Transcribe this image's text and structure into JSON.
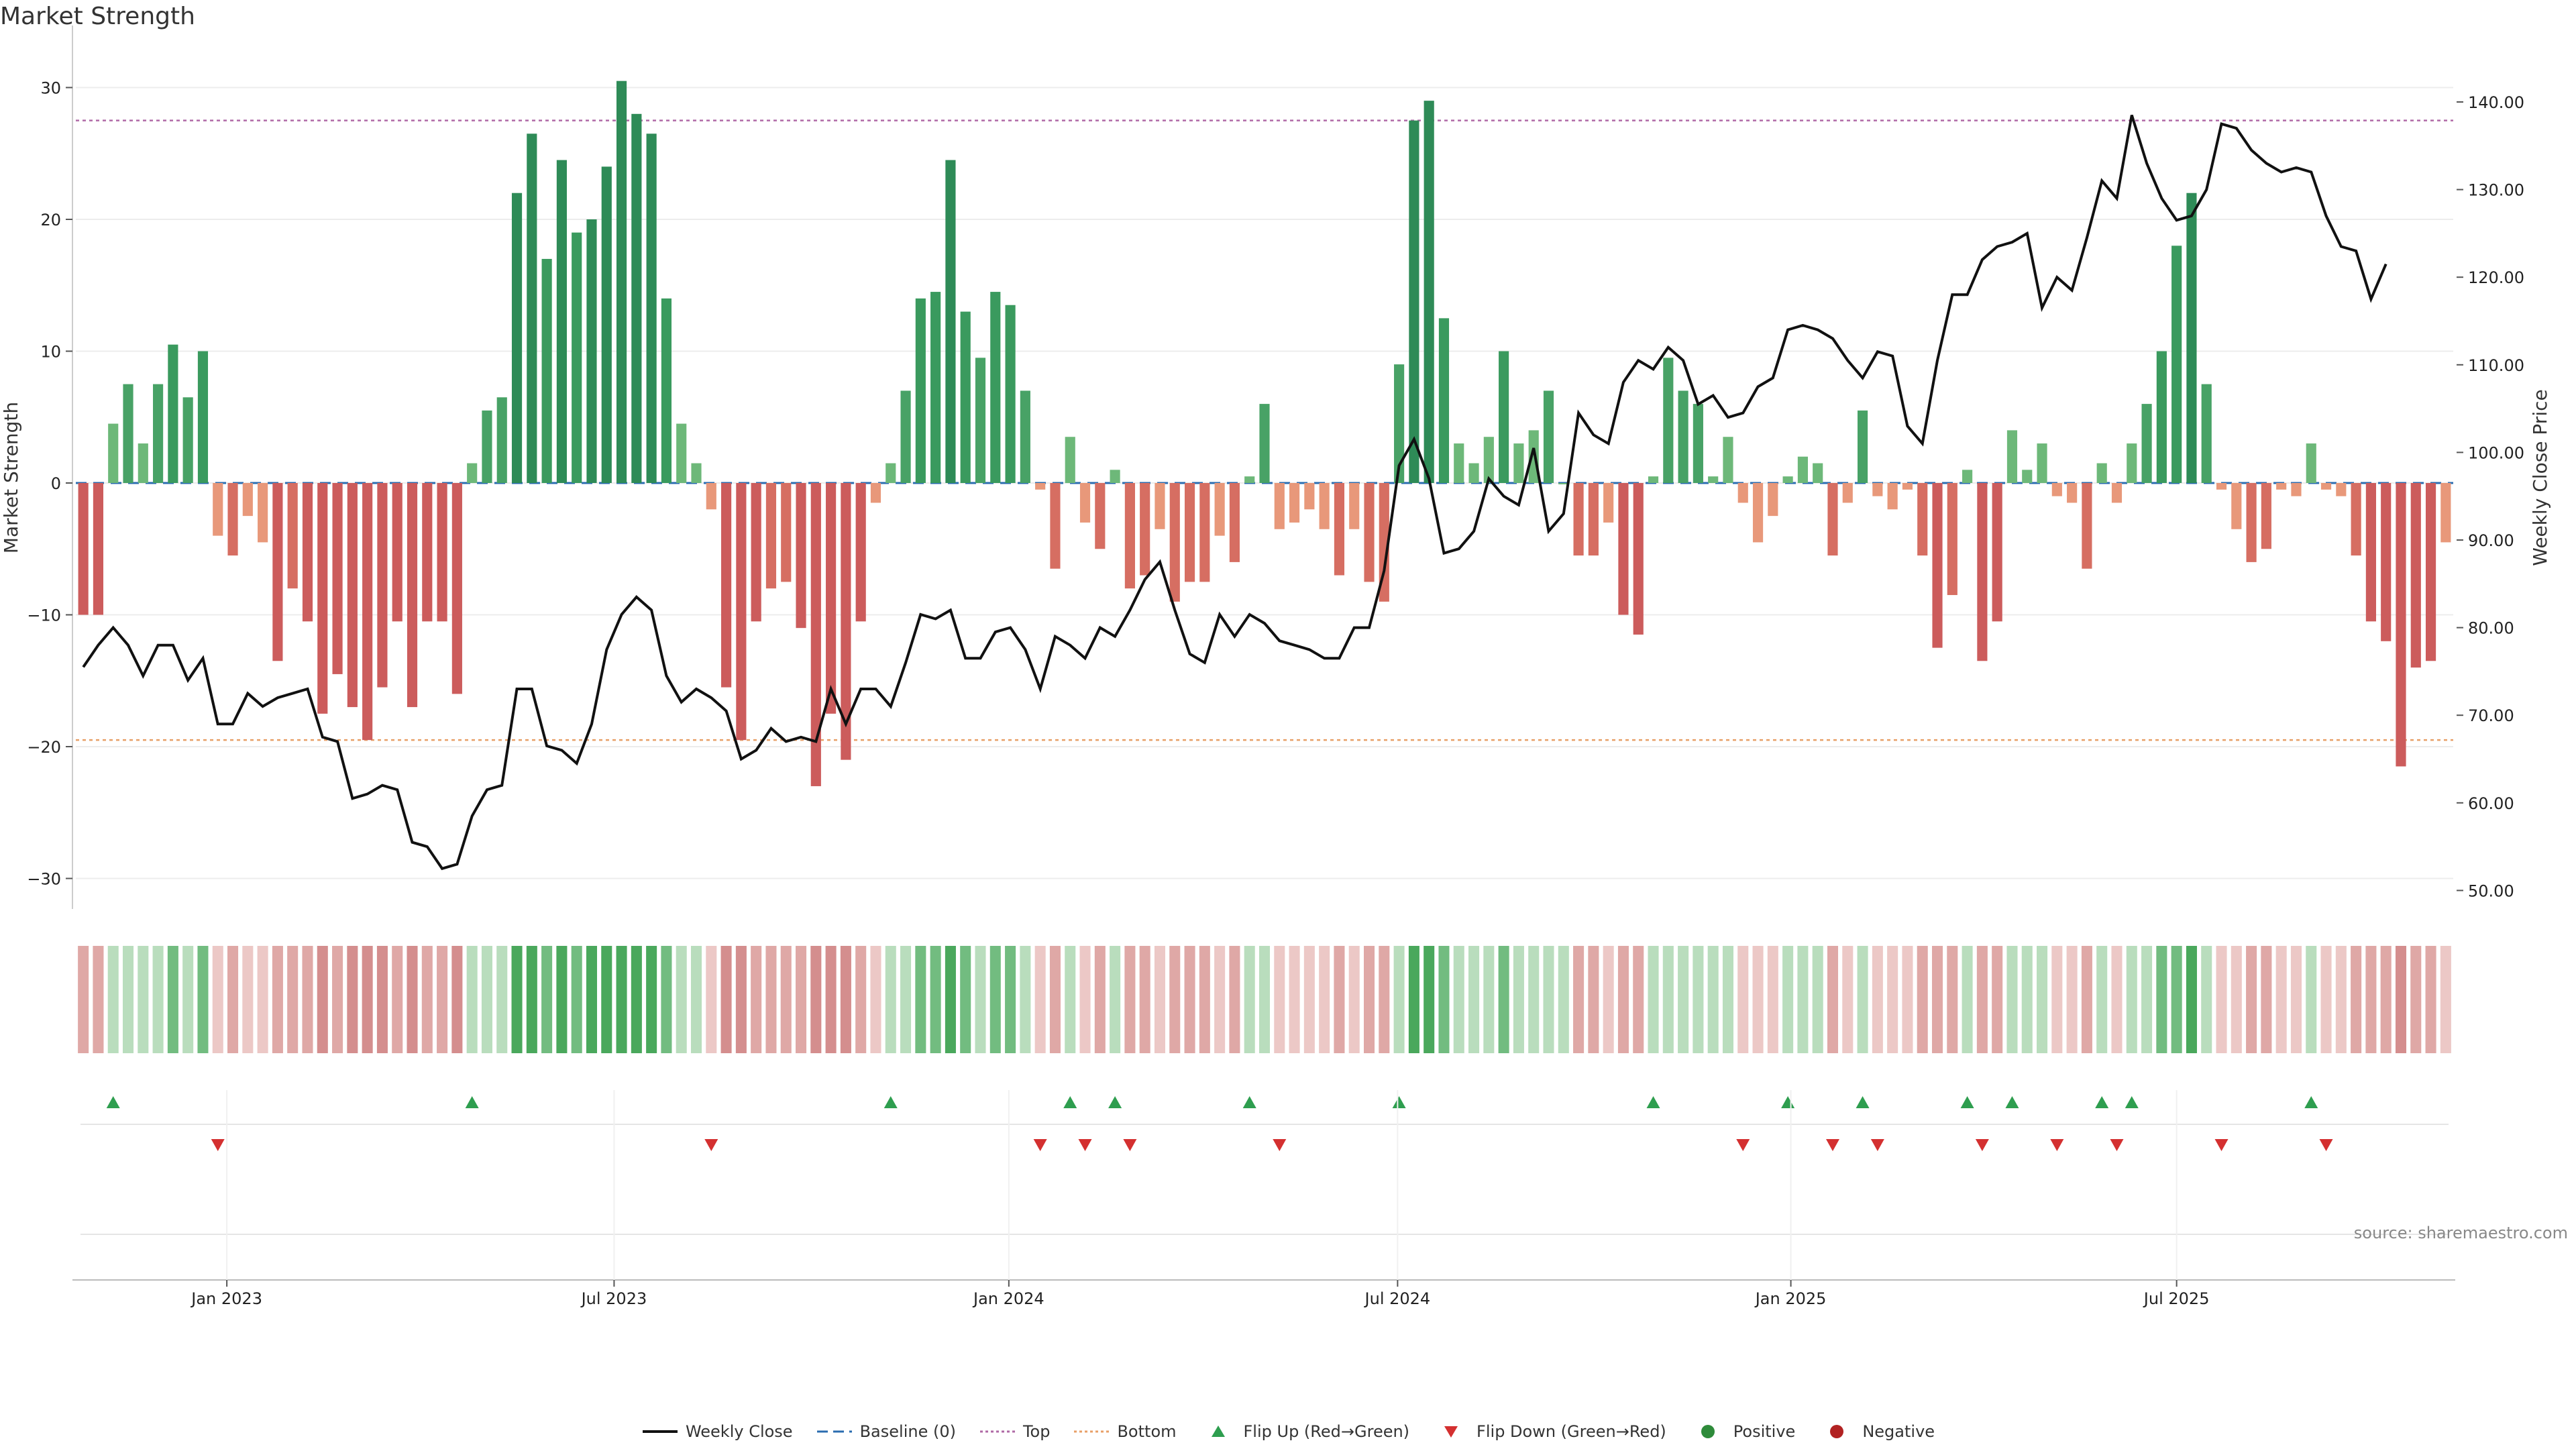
{
  "title": "Market Strength",
  "source": "source: sharemaestro.com",
  "chart_data": {
    "type": "bar",
    "title": "Market Strength",
    "y_left": {
      "label": "Market Strength",
      "range": [
        -32,
        30.5
      ],
      "ticks": [
        30,
        20,
        10,
        0,
        -10,
        -20,
        -30
      ]
    },
    "y_right": {
      "label": "Weekly Close Price",
      "range": [
        49,
        143.5
      ],
      "ticks": [
        "140.00",
        "130.00",
        "120.00",
        "110.00",
        "100.00",
        "90.00",
        "80.00",
        "70.00",
        "60.00",
        "50.00"
      ]
    },
    "reference_lines": [
      {
        "name": "Top",
        "value": 27.5,
        "color": "#b06aa6"
      },
      {
        "name": "Bottom",
        "value": -19.5,
        "color": "#e8a068"
      },
      {
        "name": "Baseline (0)",
        "value": 0,
        "color": "#2b6cb0"
      }
    ],
    "x_ticks": [
      {
        "label": "Jan 2023",
        "week": 9.6
      },
      {
        "label": "Jul 2023",
        "week": 35.5
      },
      {
        "label": "Jan 2024",
        "week": 61.9
      },
      {
        "label": "Jul 2024",
        "week": 87.9
      },
      {
        "label": "Jan 2025",
        "week": 114.2
      },
      {
        "label": "Jul 2025",
        "week": 140.0
      }
    ],
    "strength": [
      -10.0,
      -10.0,
      4.5,
      7.5,
      3.0,
      7.5,
      10.5,
      6.5,
      10.0,
      -4.0,
      -5.5,
      -2.5,
      -4.5,
      -13.5,
      -8.0,
      -10.5,
      -17.5,
      -14.5,
      -17.0,
      -19.5,
      -15.5,
      -10.5,
      -17.0,
      -10.5,
      -10.5,
      -16.0,
      1.5,
      5.5,
      6.5,
      22.0,
      26.5,
      17.0,
      24.5,
      19.0,
      20.0,
      24.0,
      30.5,
      28.0,
      26.5,
      14.0,
      4.5,
      1.5,
      -2.0,
      -15.5,
      -19.5,
      -10.5,
      -8.0,
      -7.5,
      -11.0,
      -23.0,
      -17.5,
      -21.0,
      -10.5,
      -1.5,
      1.5,
      7.0,
      14.0,
      14.5,
      24.5,
      13.0,
      9.5,
      14.5,
      13.5,
      7.0,
      -0.5,
      -6.5,
      3.5,
      -3.0,
      -5.0,
      1.0,
      -8.0,
      -7.0,
      -3.5,
      -9.0,
      -7.5,
      -7.5,
      -4.0,
      -6.0,
      0.5,
      6.0,
      -3.5,
      -3.0,
      -2.0,
      -3.5,
      -7.0,
      -3.5,
      -7.5,
      -9.0,
      9.0,
      27.5,
      29.0,
      12.5,
      3.0,
      1.5,
      3.5,
      10.0,
      3.0,
      4.0,
      7.0,
      0.0,
      -5.5,
      -5.5,
      -3.0,
      -10.0,
      -11.5,
      0.5,
      9.5,
      7.0,
      6.0,
      0.5,
      3.5,
      -1.5,
      -4.5,
      -2.5,
      0.5,
      2.0,
      1.5,
      -5.5,
      -1.5,
      5.5,
      -1.0,
      -2.0,
      -0.5,
      -5.5,
      -12.5,
      -8.5,
      1.0,
      -13.5,
      -10.5,
      4.0,
      1.0,
      3.0,
      -1.0,
      -1.5,
      -6.5,
      1.5,
      -1.5,
      3.0,
      6.0,
      10.0,
      18.0,
      22.0,
      7.5,
      -0.5,
      -3.5,
      -6.0,
      -5.0,
      -0.5,
      -1.0,
      3.0,
      -0.5,
      -1.0,
      -5.5,
      -10.5,
      -12.0,
      -21.5,
      -14.0,
      -13.5,
      -4.5
    ],
    "weekly_close": [
      75.5,
      78.0,
      80.0,
      78.0,
      74.5,
      78.0,
      78.0,
      74.0,
      76.5,
      69.0,
      69.0,
      72.5,
      71.0,
      72.0,
      72.5,
      73.0,
      67.5,
      67.0,
      60.5,
      61.0,
      62.0,
      61.5,
      55.5,
      55.0,
      52.5,
      53.0,
      58.5,
      61.5,
      62.0,
      73.0,
      73.0,
      66.5,
      66.0,
      64.5,
      69.0,
      77.5,
      81.5,
      83.5,
      82.0,
      74.5,
      71.5,
      73.0,
      72.0,
      70.5,
      65.0,
      66.0,
      68.5,
      67.0,
      67.5,
      67.0,
      73.0,
      69.0,
      73.0,
      73.0,
      71.0,
      76.0,
      81.5,
      81.0,
      82.0,
      76.5,
      76.5,
      79.5,
      80.0,
      77.5,
      73.0,
      79.0,
      78.0,
      76.5,
      80.0,
      79.0,
      82.0,
      85.5,
      87.5,
      82.0,
      77.0,
      76.0,
      81.5,
      79.0,
      81.5,
      80.5,
      78.5,
      78.0,
      77.5,
      76.5,
      76.5,
      80.0,
      80.0,
      86.5,
      98.5,
      101.5,
      97.0,
      88.5,
      89.0,
      91.0,
      97.0,
      95.0,
      94.0,
      100.5,
      91.0,
      93.0,
      104.5,
      102.0,
      101.0,
      108.0,
      110.5,
      109.5,
      112.0,
      110.5,
      105.5,
      106.5,
      104.0,
      104.5,
      107.5,
      108.5,
      114.0,
      114.5,
      114.0,
      113.0,
      110.5,
      108.5,
      111.5,
      111.0,
      103.0,
      101.0,
      110.5,
      118.0,
      118.0,
      122.0,
      123.5,
      124.0,
      125.0,
      116.5,
      120.0,
      118.5,
      124.5,
      131.0,
      129.0,
      138.5,
      133.0,
      129.0,
      126.5,
      127.0,
      130.0,
      137.5,
      137.0,
      134.5,
      133.0,
      132.0,
      132.5,
      132.0,
      127.0,
      123.5,
      123.0,
      117.5,
      121.5
    ]
  },
  "legend": [
    {
      "key": "weekly-close",
      "label": "Weekly Close",
      "color": "#111111"
    },
    {
      "key": "baseline",
      "label": "Baseline (0)",
      "color": "#2b6cb0"
    },
    {
      "key": "top",
      "label": "Top",
      "color": "#b06aa6"
    },
    {
      "key": "bottom",
      "label": "Bottom",
      "color": "#e8a068"
    },
    {
      "key": "flip-up",
      "label": "Flip Up (Red→Green)",
      "color": "#2e9e4f"
    },
    {
      "key": "flip-down",
      "label": "Flip Down (Green→Red)",
      "color": "#d43030"
    },
    {
      "key": "positive",
      "label": "Positive",
      "color": "#2e8b3a"
    },
    {
      "key": "negative",
      "label": "Negative",
      "color": "#b22222"
    }
  ]
}
